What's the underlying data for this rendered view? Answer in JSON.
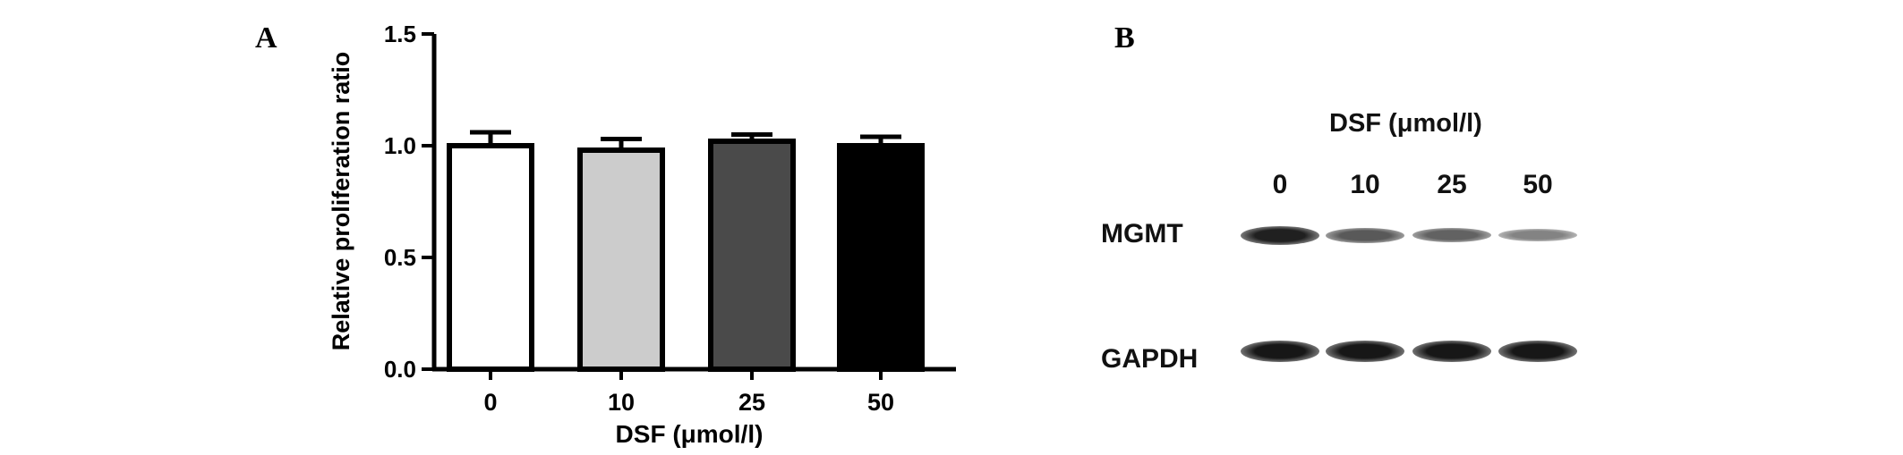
{
  "panel_a": {
    "letter": "A",
    "chart_data": {
      "type": "bar",
      "categories": [
        "0",
        "10",
        "25",
        "50"
      ],
      "values": [
        1.0,
        0.98,
        1.02,
        1.0
      ],
      "errors": [
        0.06,
        0.05,
        0.03,
        0.04
      ],
      "bar_colors": [
        "#ffffff",
        "#cccccc",
        "#4a4a4a",
        "#000000"
      ],
      "title": "",
      "xlabel": "DSF (μmol/l)",
      "ylabel": "Relative proliferation ratio",
      "ylim": [
        0,
        1.5
      ],
      "yticks": [
        "0.0",
        "0.5",
        "1.0",
        "1.5"
      ],
      "grid": false
    }
  },
  "panel_b": {
    "letter": "B",
    "blot_title": "DSF (μmol/l)",
    "lane_labels": [
      "0",
      "10",
      "25",
      "50"
    ],
    "rows": [
      {
        "label": "MGMT",
        "intensities": [
          0.9,
          0.55,
          0.5,
          0.3
        ]
      },
      {
        "label": "GAPDH",
        "intensities": [
          0.95,
          0.95,
          0.95,
          0.95
        ]
      }
    ]
  }
}
